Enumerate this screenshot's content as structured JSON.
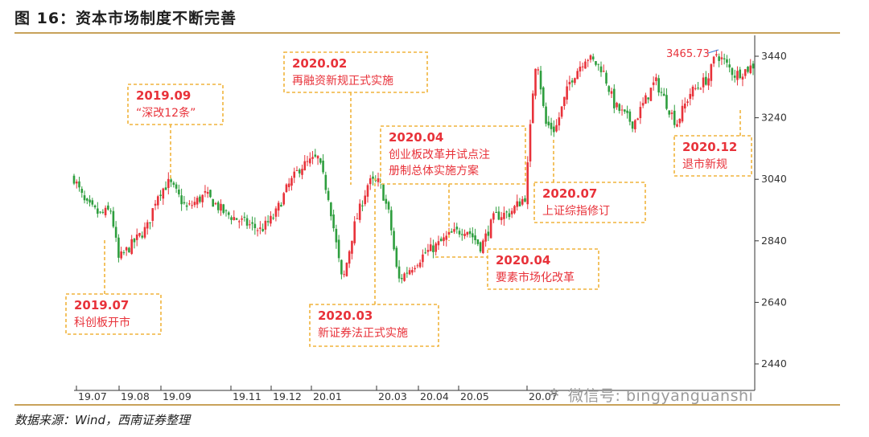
{
  "title": "图 16：资本市场制度不断完善",
  "source": "数据来源：Wind，西南证券整理",
  "watermark": "微信号: bingyanguanshi",
  "watermark_icon": "wechat-icon",
  "colors": {
    "up": "#e8323a",
    "down": "#2e9e3e",
    "callout": "#f0b43c",
    "rule": "#c8a25a"
  },
  "chart_data": {
    "type": "candlestick",
    "title": "",
    "xlabel": "",
    "ylabel": "",
    "ylim": [
      2400,
      3500
    ],
    "y_ticks": [
      2440,
      2640,
      2840,
      3040,
      3240,
      3440
    ],
    "x_ticks": [
      "19.07",
      "19.08",
      "19.09",
      "19.11",
      "19.12",
      "20.01",
      "20.03",
      "20.04",
      "20.05",
      "20.07"
    ],
    "grid": false,
    "peak_label": "3465.73",
    "close_path": [
      [
        "2019-07-01",
        3044
      ],
      [
        "2019-07-10",
        2960
      ],
      [
        "2019-07-22",
        2925
      ],
      [
        "2019-07-31",
        2940
      ],
      [
        "2019-08-06",
        2780
      ],
      [
        "2019-08-15",
        2820
      ],
      [
        "2019-08-26",
        2870
      ],
      [
        "2019-08-30",
        2890
      ],
      [
        "2019-09-06",
        2990
      ],
      [
        "2019-09-16",
        3030
      ],
      [
        "2019-09-30",
        2945
      ],
      [
        "2019-10-15",
        2990
      ],
      [
        "2019-10-31",
        2930
      ],
      [
        "2019-11-15",
        2900
      ],
      [
        "2019-11-29",
        2875
      ],
      [
        "2019-12-10",
        2920
      ],
      [
        "2019-12-20",
        3010
      ],
      [
        "2019-12-31",
        3080
      ],
      [
        "2020-01-14",
        3110
      ],
      [
        "2020-01-23",
        2980
      ],
      [
        "2020-02-03",
        2700
      ],
      [
        "2020-02-12",
        2880
      ],
      [
        "2020-02-24",
        3030
      ],
      [
        "2020-03-04",
        3030
      ],
      [
        "2020-03-12",
        2920
      ],
      [
        "2020-03-19",
        2710
      ],
      [
        "2020-03-31",
        2760
      ],
      [
        "2020-04-10",
        2800
      ],
      [
        "2020-04-21",
        2830
      ],
      [
        "2020-04-30",
        2860
      ],
      [
        "2020-05-13",
        2880
      ],
      [
        "2020-05-25",
        2820
      ],
      [
        "2020-06-05",
        2920
      ],
      [
        "2020-06-17",
        2930
      ],
      [
        "2020-06-30",
        2985
      ],
      [
        "2020-07-06",
        3330
      ],
      [
        "2020-07-09",
        3450
      ],
      [
        "2020-07-16",
        3220
      ],
      [
        "2020-07-24",
        3200
      ],
      [
        "2020-08-05",
        3360
      ],
      [
        "2020-08-18",
        3440
      ],
      [
        "2020-08-31",
        3400
      ],
      [
        "2020-09-10",
        3280
      ],
      [
        "2020-09-25",
        3220
      ],
      [
        "2020-10-13",
        3360
      ],
      [
        "2020-10-30",
        3220
      ],
      [
        "2020-11-10",
        3320
      ],
      [
        "2020-11-25",
        3370
      ],
      [
        "2020-12-01",
        3450
      ],
      [
        "2020-12-08",
        3420
      ],
      [
        "2020-12-16",
        3380
      ],
      [
        "2020-12-25",
        3395
      ],
      [
        "2020-12-31",
        3410
      ]
    ],
    "annotations": [
      {
        "date": "2019.07",
        "text": "科创板开市"
      },
      {
        "date": "2019.09",
        "text": "“深改12条”"
      },
      {
        "date": "2020.02",
        "text": "再融资新规正式实施"
      },
      {
        "date": "2020.03",
        "text": "新证券法正式实施"
      },
      {
        "date": "2020.04",
        "text": "创业板改革并试点注册制总体实施方案"
      },
      {
        "date": "2020.04",
        "text": "要素市场化改革"
      },
      {
        "date": "2020.07",
        "text": "上证综指修订"
      },
      {
        "date": "2020.12",
        "text": "退市新规"
      }
    ]
  }
}
